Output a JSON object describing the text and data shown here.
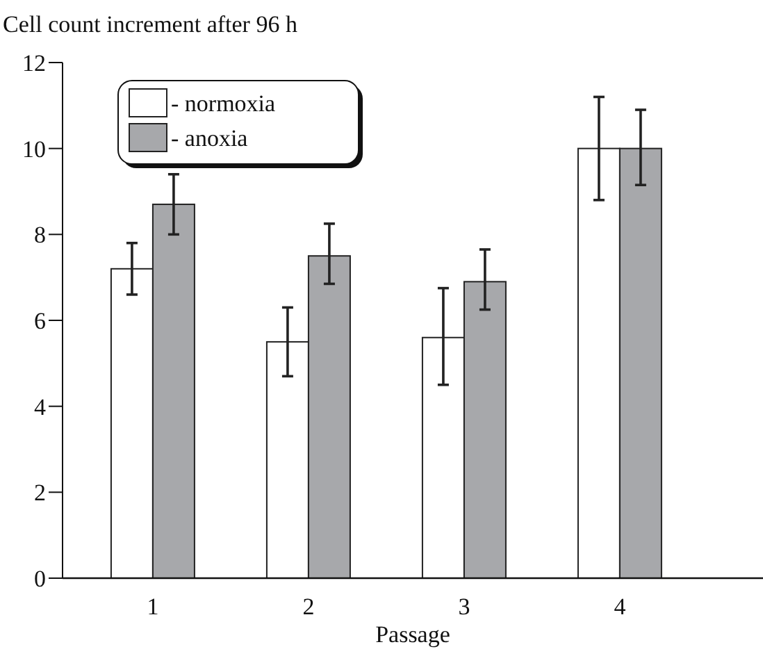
{
  "chart_data": {
    "type": "bar",
    "title": "Cell count increment after 96 h",
    "xlabel": "Passage",
    "categories": [
      "1",
      "2",
      "3",
      "4"
    ],
    "series": [
      {
        "name": "- normoxia",
        "color": "#ffffff",
        "values": [
          7.2,
          5.5,
          5.6,
          10.0
        ],
        "errors": [
          [
            6.6,
            7.8
          ],
          [
            4.7,
            6.3
          ],
          [
            4.5,
            6.75
          ],
          [
            8.8,
            11.2
          ]
        ]
      },
      {
        "name": "- anoxia",
        "color": "#a7a8ab",
        "values": [
          8.7,
          7.5,
          6.9,
          10.0
        ],
        "errors": [
          [
            8.0,
            9.4
          ],
          [
            6.85,
            8.25
          ],
          [
            6.25,
            7.65
          ],
          [
            9.15,
            10.9
          ]
        ]
      }
    ],
    "ylim": [
      0,
      12
    ],
    "yticks": [
      0,
      2,
      4,
      6,
      8,
      10,
      12
    ],
    "legend": "top left"
  }
}
